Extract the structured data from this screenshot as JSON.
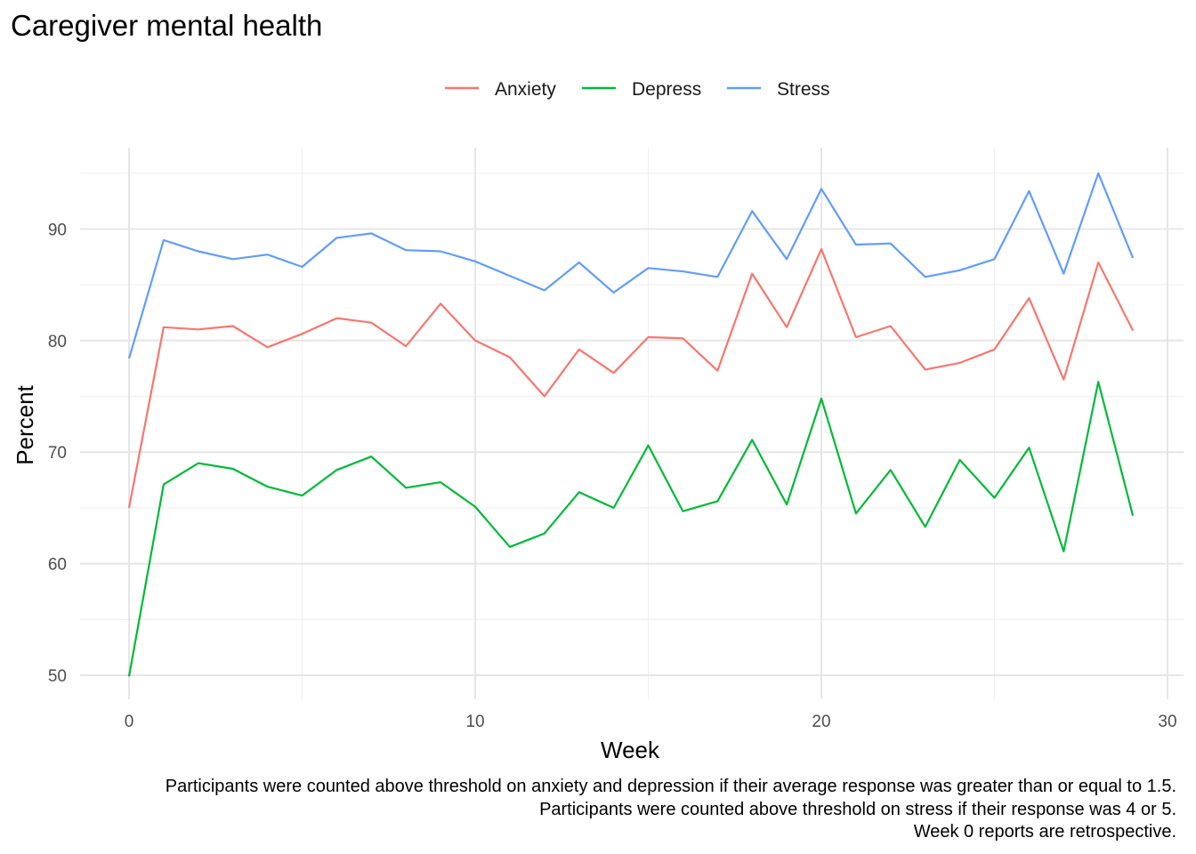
{
  "chart_data": {
    "type": "line",
    "title": "Caregiver mental health",
    "xlabel": "Week",
    "ylabel": "Percent",
    "xlim": [
      -1.5,
      30
    ],
    "ylim": [
      48,
      96
    ],
    "x_ticks": [
      0,
      10,
      20,
      30
    ],
    "y_ticks": [
      50,
      60,
      70,
      80,
      90
    ],
    "grid": true,
    "legend_position": "top",
    "x": [
      0,
      1,
      2,
      3,
      4,
      5,
      6,
      7,
      8,
      9,
      10,
      11,
      12,
      13,
      14,
      15,
      16,
      17,
      18,
      19,
      20,
      21,
      22,
      23,
      24,
      25,
      26,
      27,
      28,
      29
    ],
    "series": [
      {
        "name": "Anxiety",
        "color": "#F8766D",
        "values": [
          65.0,
          81.2,
          81.0,
          81.3,
          79.4,
          80.6,
          82.0,
          81.6,
          79.5,
          83.3,
          80.0,
          78.5,
          75.0,
          79.2,
          77.1,
          80.3,
          80.2,
          77.3,
          86.0,
          81.2,
          88.2,
          80.3,
          81.3,
          77.4,
          78.0,
          79.2,
          83.8,
          76.5,
          87.0,
          80.9
        ]
      },
      {
        "name": "Depress",
        "color": "#00BA38",
        "values": [
          49.9,
          67.1,
          69.0,
          68.5,
          66.9,
          66.1,
          68.4,
          69.6,
          66.8,
          67.3,
          65.1,
          61.5,
          62.7,
          66.4,
          65.0,
          70.6,
          64.7,
          65.6,
          71.1,
          65.3,
          74.8,
          64.5,
          68.4,
          63.3,
          69.3,
          65.9,
          70.4,
          61.1,
          76.3,
          64.3
        ]
      },
      {
        "name": "Stress",
        "color": "#619CFF",
        "values": [
          78.4,
          89.0,
          88.0,
          87.3,
          87.7,
          86.6,
          89.2,
          89.6,
          88.1,
          88.0,
          87.1,
          85.8,
          84.5,
          87.0,
          84.3,
          86.5,
          86.2,
          85.7,
          91.6,
          87.3,
          93.6,
          88.6,
          88.7,
          85.7,
          86.3,
          87.3,
          93.4,
          86.0,
          95.0,
          87.4
        ]
      }
    ],
    "caption": [
      "Participants were counted above threshold on anxiety and depression if their average response was greater than or equal to 1.5.",
      "Participants were counted above threshold on stress if their response was 4 or 5.",
      "Week 0 reports are retrospective."
    ]
  }
}
